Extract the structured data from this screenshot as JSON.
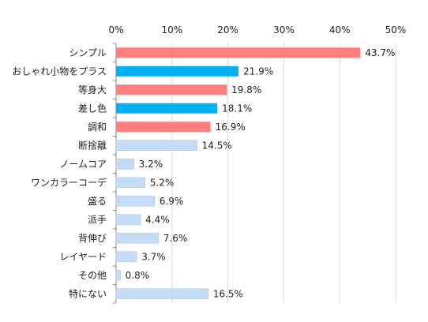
{
  "chart_data": {
    "type": "bar",
    "orientation": "horizontal",
    "x_ticks": [
      "0%",
      "10%",
      "20%",
      "30%",
      "40%",
      "50%"
    ],
    "xlim": [
      0,
      50
    ],
    "unit": "%",
    "grid": true,
    "categories": [
      "シンプル",
      "おしゃれ小物をプラス",
      "等身大",
      "差し色",
      "調和",
      "断捨離",
      "ノームコア",
      "ワンカラーコーデ",
      "盛る",
      "派手",
      "背伸び",
      "レイヤード",
      "その他",
      "特にない"
    ],
    "values": [
      43.7,
      21.9,
      19.8,
      18.1,
      16.9,
      14.5,
      3.2,
      5.2,
      6.9,
      4.4,
      7.6,
      3.7,
      0.8,
      16.5
    ],
    "value_labels": [
      "43.7%",
      "21.9%",
      "19.8%",
      "18.1%",
      "16.9%",
      "14.5%",
      "3.2%",
      "5.2%",
      "6.9%",
      "4.4%",
      "7.6%",
      "3.7%",
      "0.8%",
      "16.5%"
    ],
    "bar_colors": [
      "#ff7f7f",
      "#00b0f0",
      "#ff7f7f",
      "#00b0f0",
      "#ff7f7f",
      "#c5dcf7",
      "#c5dcf7",
      "#c5dcf7",
      "#c5dcf7",
      "#c5dcf7",
      "#c5dcf7",
      "#c5dcf7",
      "#c5dcf7",
      "#c5dcf7"
    ],
    "colors": {
      "pink": "#ff7f7f",
      "blue": "#00b0f0",
      "light_blue": "#c5dcf7",
      "light_blue_border": "#a9c8ee",
      "gridline": "#d9d9d9",
      "axis": "#888888"
    }
  }
}
